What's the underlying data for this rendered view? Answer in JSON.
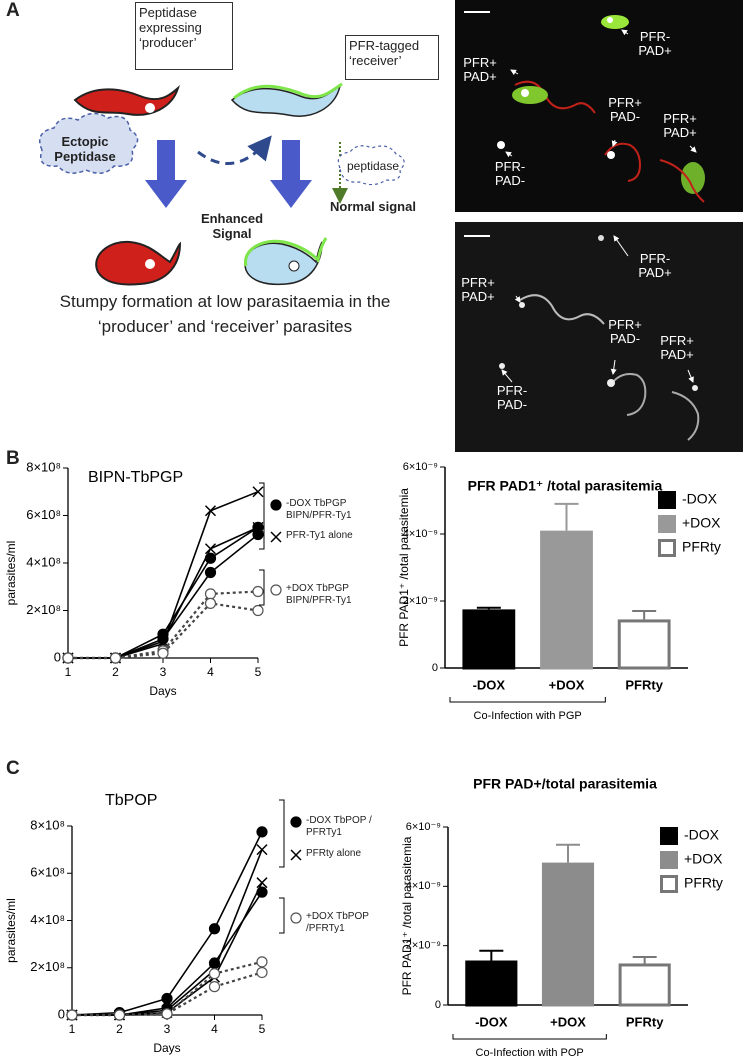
{
  "panel_a": {
    "letter": "A",
    "producer_label": "Peptidase expressing ‘producer’",
    "receiver_label": "PFR-tagged ‘receiver’",
    "ectopic_label": "Ectopic Peptidase",
    "enhanced_label": "Enhanced Signal",
    "peptidase_label": "peptidase",
    "normal_label": "Normal signal",
    "caption": "Stumpy formation at low parasitaemia in the ‘producer’ and ‘receiver’ parasites",
    "micrograph_labels": [
      [
        "PFR- PAD+",
        "PFR+ PAD+",
        "PFR+ PAD-",
        "PFR+ PAD+",
        "PFR- PAD-"
      ],
      [
        "PFR- PAD+",
        "PFR+ PAD+",
        "PFR+ PAD-",
        "PFR+ PAD+",
        "PFR- PAD-"
      ]
    ]
  },
  "panel_b_letter": "B",
  "panel_c_letter": "C",
  "chart_data": [
    {
      "type": "line",
      "title": "BIPN-TbPGP",
      "x_label": "Days",
      "y_label": "parasites/ml",
      "x": [
        1,
        2,
        3,
        4,
        5
      ],
      "xlim": [
        1,
        5
      ],
      "xticks": [
        1,
        2,
        3,
        4,
        5
      ],
      "ylim": [
        0,
        800000000
      ],
      "yticks": [
        0,
        {
          "value": 200000000,
          "label": "2×10⁸"
        },
        {
          "value": 400000000,
          "label": "4×10⁸"
        },
        {
          "value": 600000000,
          "label": "6×10⁸"
        },
        {
          "value": 800000000,
          "label": "8×10⁸"
        }
      ],
      "series": [
        {
          "name": "-DOX TbPGP BIPN/PFR-Ty1",
          "color": "#000000",
          "marker": "filled-circle",
          "dash": "solid",
          "replicates": [
            [
              0,
              0,
              100000000,
              420000000,
              550000000
            ],
            [
              0,
              0,
              80000000,
              360000000,
              520000000
            ]
          ]
        },
        {
          "name": "PFR-Ty1 alone",
          "color": "#000000",
          "marker": "cross",
          "dash": "solid",
          "replicates": [
            [
              0,
              0,
              60000000,
              620000000,
              700000000
            ],
            [
              0,
              0,
              70000000,
              460000000,
              550000000
            ]
          ]
        },
        {
          "name": "+DOX TbPGP BIPN/PFR-Ty1",
          "color": "#444444",
          "marker": "open-circle",
          "dash": "dotted",
          "replicates": [
            [
              0,
              0,
              30000000,
              270000000,
              280000000
            ],
            [
              0,
              0,
              20000000,
              230000000,
              200000000
            ]
          ]
        }
      ]
    },
    {
      "type": "bar",
      "title": "PFR PAD1⁺ /total parasitemia",
      "y_label": "PFR PAD1⁺ /total parasitemia",
      "categories": [
        "-DOX",
        "+DOX",
        "PFRty"
      ],
      "values": [
        1.75e-09,
        4.1e-09,
        1.45e-09
      ],
      "errors": [
        5e-11,
        8e-10,
        2.5e-10
      ],
      "colors": [
        "#000000",
        "#999999",
        "#ffffff"
      ],
      "edge_colors": [
        "#000000",
        "#999999",
        "#777777"
      ],
      "ylim": [
        0,
        6e-09
      ],
      "yticks": [
        0,
        {
          "value": 2e-09,
          "label": "2×10⁻⁹"
        },
        {
          "value": 4e-09,
          "label": "4×10⁻⁹"
        },
        {
          "value": 6e-09,
          "label": "6×10⁻⁹"
        }
      ],
      "annotation": "Co-Infection with PGP",
      "legend": true
    },
    {
      "type": "line",
      "title": "TbPOP",
      "x_label": "Days",
      "y_label": "parasites/ml",
      "x": [
        1,
        2,
        3,
        4,
        5
      ],
      "xlim": [
        1,
        5
      ],
      "xticks": [
        1,
        2,
        3,
        4,
        5
      ],
      "ylim": [
        0,
        800000000
      ],
      "yticks": [
        0,
        {
          "value": 200000000,
          "label": "2×10⁸"
        },
        {
          "value": 400000000,
          "label": "4×10⁸"
        },
        {
          "value": 600000000,
          "label": "6×10⁸"
        },
        {
          "value": 800000000,
          "label": "8×10⁸"
        }
      ],
      "series": [
        {
          "name": "-DOX TbPOP / PFRTy1",
          "color": "#000000",
          "marker": "filled-circle",
          "dash": "solid",
          "replicates": [
            [
              0,
              10000000,
              70000000,
              365000000,
              775000000
            ],
            [
              0,
              0,
              30000000,
              220000000,
              520000000
            ]
          ]
        },
        {
          "name": "PFRty alone",
          "color": "#000000",
          "marker": "cross",
          "dash": "solid",
          "replicates": [
            [
              0,
              0,
              20000000,
              190000000,
              700000000
            ],
            [
              0,
              0,
              10000000,
              160000000,
              560000000
            ]
          ]
        },
        {
          "name": "+DOX TbPOP /PFRTy1",
          "color": "#444444",
          "marker": "open-circle",
          "dash": "dotted",
          "replicates": [
            [
              0,
              0,
              5000000,
              175000000,
              225000000
            ],
            [
              0,
              0,
              5000000,
              120000000,
              180000000
            ]
          ]
        }
      ]
    },
    {
      "type": "bar",
      "title": "PFR PAD+/total parasitemia",
      "y_label": "PFR PAD1⁺ /total parasitemia",
      "categories": [
        "-DOX",
        "+DOX",
        "PFRty"
      ],
      "values": [
        1.5e-09,
        4.8e-09,
        1.4e-09
      ],
      "errors": [
        3.3e-10,
        6e-10,
        2.2e-10
      ],
      "colors": [
        "#000000",
        "#8c8c8c",
        "#ffffff"
      ],
      "edge_colors": [
        "#000000",
        "#8c8c8c",
        "#777777"
      ],
      "ylim": [
        0,
        6e-09
      ],
      "yticks": [
        0,
        {
          "value": 2e-09,
          "label": "2×10⁻⁹"
        },
        {
          "value": 4e-09,
          "label": "4×10⁻⁹"
        },
        {
          "value": 6e-09,
          "label": "6×10⁻⁹"
        }
      ],
      "annotation": "Co-Infection with POP",
      "legend": true
    }
  ]
}
